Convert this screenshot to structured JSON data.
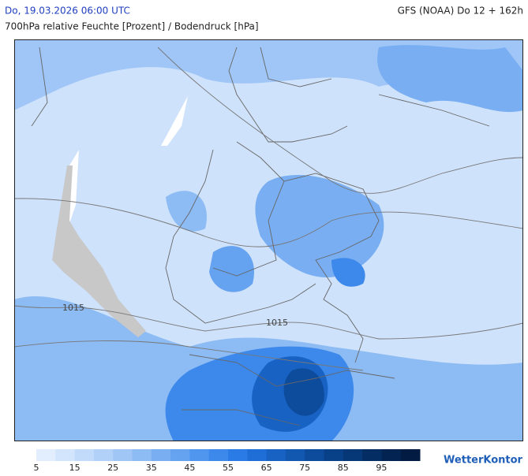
{
  "header": {
    "left": "Do, 19.03.2026 06:00 UTC",
    "right": "GFS (NOAA) Do 12 + 162h",
    "subtitle": "700hPa relative Feuchte [Prozent] / Bodendruck [hPa]"
  },
  "map": {
    "isobars": [
      "1015",
      "1015"
    ]
  },
  "legend": {
    "range": [
      5,
      105
    ],
    "ticks": [
      5,
      15,
      25,
      35,
      45,
      55,
      65,
      75,
      85,
      95
    ],
    "colors": [
      "#e2eefd",
      "#d3e5fc",
      "#c3dbfa",
      "#b2d1f8",
      "#a0c6f6",
      "#8dbbf4",
      "#79aff2",
      "#65a2f0",
      "#5196ee",
      "#3d89eb",
      "#2b7be6",
      "#1f6ed8",
      "#1862c4",
      "#1257b0",
      "#0d4c9c",
      "#094189",
      "#063776",
      "#042d64",
      "#032453",
      "#021b42"
    ]
  },
  "brand": "WetterKontor"
}
